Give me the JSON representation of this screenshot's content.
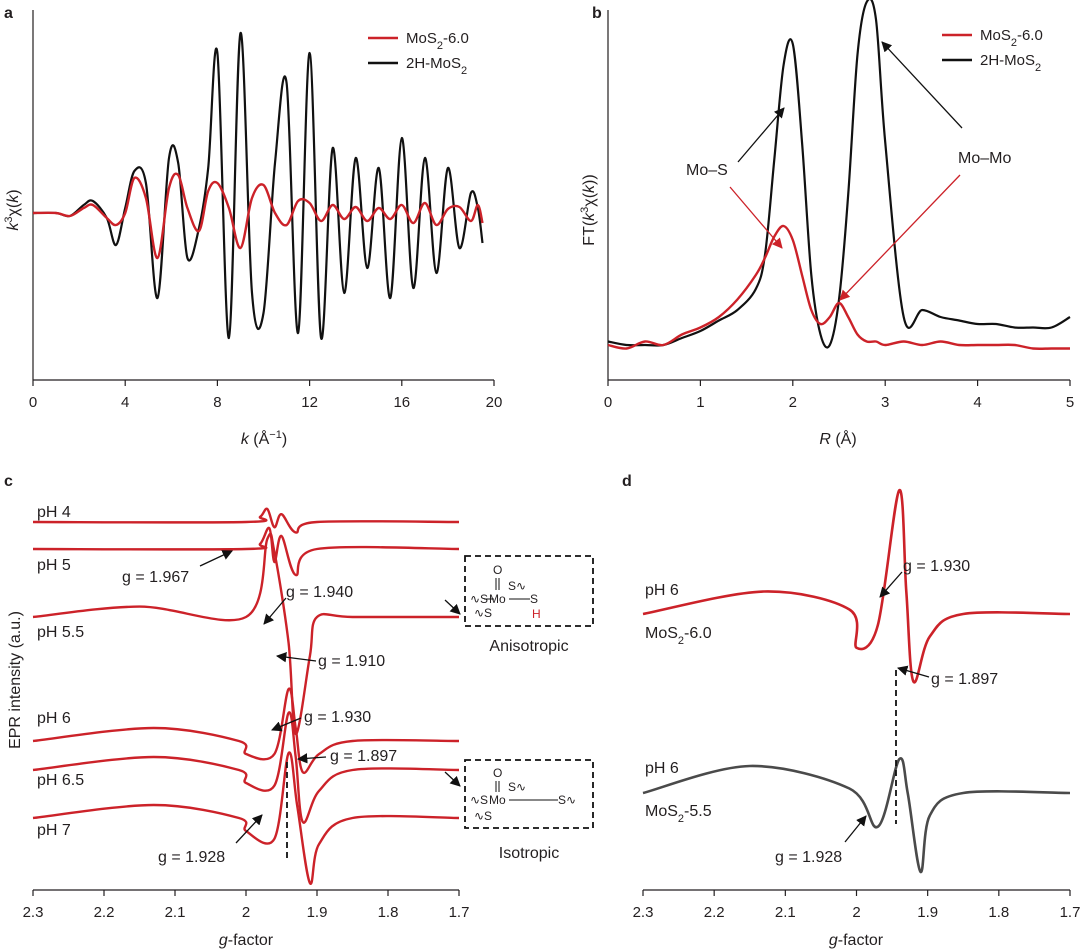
{
  "colors": {
    "red": "#cc2229",
    "black": "#111111",
    "gray": "#4a4a4a",
    "text": "#231f20"
  },
  "panels": {
    "a": {
      "letter": "a",
      "xlabel": "k (Å⁻¹)",
      "ylabel": "k³χ(k)",
      "legend": [
        "MoS2-6.0",
        "2H-MoS2"
      ],
      "xticks": [
        "0",
        "4",
        "8",
        "12",
        "16",
        "20"
      ]
    },
    "b": {
      "letter": "b",
      "xlabel": "R (Å)",
      "ylabel": "FT(k³χ(k))",
      "legend": [
        "MoS2-6.0",
        "2H-MoS2"
      ],
      "xticks": [
        "0",
        "1",
        "2",
        "3",
        "4",
        "5"
      ],
      "annotations": [
        "Mo–S",
        "Mo–Mo"
      ]
    },
    "c": {
      "letter": "c",
      "xlabel": "g-factor",
      "ylabel": "EPR intensity (a.u.)",
      "xticks": [
        "2.3",
        "2.2",
        "2.1",
        "2",
        "1.9",
        "1.8",
        "1.7"
      ],
      "traces": [
        "pH 4",
        "pH 5",
        "pH 5.5",
        "pH 6",
        "pH 6.5",
        "pH 7"
      ],
      "g_values": [
        "g = 1.967",
        "g = 1.940",
        "g = 1.910",
        "g = 1.930",
        "g = 1.897",
        "g = 1.928"
      ],
      "structures": [
        "Anisotropic",
        "Isotropic"
      ]
    },
    "d": {
      "letter": "d",
      "xlabel": "g-factor",
      "xticks": [
        "2.3",
        "2.2",
        "2.1",
        "2",
        "1.9",
        "1.8",
        "1.7"
      ],
      "traces": [
        "pH 6",
        "MoS2-6.0",
        "pH 6",
        "MoS2-5.5"
      ],
      "g_values": [
        "g = 1.930",
        "g = 1.897",
        "g = 1.928"
      ]
    }
  },
  "chart_data": [
    {
      "panel": "a",
      "type": "line",
      "title": "",
      "xlabel": "k (Å⁻¹)",
      "ylabel": "k³χ(k)",
      "xlim": [
        0,
        20
      ],
      "series": [
        {
          "name": "MoS2-6.0",
          "x": [
            0,
            1,
            1.6,
            2.2,
            2.6,
            3.2,
            3.6,
            4.0,
            4.4,
            4.9,
            5.4,
            5.9,
            6.3,
            6.7,
            7.2,
            7.6,
            8.0,
            8.5,
            9.0,
            9.5,
            10.0,
            10.5,
            11.0,
            11.5,
            12.0,
            12.5,
            13.0,
            13.5,
            14.0,
            14.5,
            15.0,
            15.5,
            16.0,
            16.5,
            17.0,
            17.5,
            18.0,
            18.5,
            19.0,
            19.3,
            19.5
          ],
          "y": [
            0.0,
            0.0,
            -0.03,
            0.05,
            0.08,
            -0.05,
            -0.12,
            0.0,
            0.35,
            0.15,
            -0.45,
            0.25,
            0.38,
            0.05,
            -0.18,
            0.22,
            0.3,
            0.05,
            -0.35,
            0.15,
            0.28,
            0.0,
            -0.12,
            0.12,
            0.1,
            -0.08,
            0.08,
            -0.06,
            0.06,
            -0.08,
            0.05,
            -0.06,
            0.08,
            -0.1,
            0.1,
            -0.12,
            0.04,
            0.06,
            -0.08,
            0.08,
            -0.1
          ]
        },
        {
          "name": "2H-MoS2",
          "x": [
            0,
            1,
            1.6,
            2.2,
            2.6,
            3.2,
            3.6,
            4.0,
            4.4,
            4.9,
            5.4,
            5.9,
            6.3,
            6.7,
            7.2,
            7.6,
            8.0,
            8.5,
            9.0,
            9.5,
            10.0,
            10.5,
            11.0,
            11.5,
            12.0,
            12.5,
            13.0,
            13.5,
            14.0,
            14.5,
            15.0,
            15.5,
            16.0,
            16.5,
            17.0,
            17.5,
            18.0,
            18.5,
            19.0,
            19.3,
            19.5
          ],
          "y": [
            0.0,
            0.0,
            -0.03,
            0.08,
            0.12,
            -0.05,
            -0.32,
            0.05,
            0.42,
            0.3,
            -0.85,
            0.55,
            0.5,
            -0.45,
            -0.15,
            0.45,
            1.6,
            -1.25,
            1.8,
            -0.8,
            -1.0,
            0.5,
            1.3,
            -1.2,
            1.6,
            -1.25,
            0.65,
            -0.8,
            0.55,
            -0.55,
            0.45,
            -0.85,
            0.75,
            -0.75,
            0.55,
            -0.6,
            0.45,
            -0.35,
            0.2,
            0.05,
            -0.3
          ]
        }
      ]
    },
    {
      "panel": "b",
      "type": "line",
      "title": "",
      "xlabel": "R (Å)",
      "ylabel": "FT(k³χ(k))",
      "xlim": [
        0,
        5
      ],
      "series": [
        {
          "name": "MoS2-6.0",
          "x": [
            0,
            0.2,
            0.4,
            0.6,
            0.8,
            1.0,
            1.2,
            1.4,
            1.6,
            1.7,
            1.8,
            1.9,
            2.0,
            2.1,
            2.2,
            2.3,
            2.4,
            2.5,
            2.6,
            2.7,
            2.8,
            2.9,
            3.0,
            3.2,
            3.4,
            3.6,
            3.8,
            4.0,
            4.2,
            4.4,
            4.6,
            4.8,
            5.0
          ],
          "y": [
            0.02,
            0.01,
            0.03,
            0.02,
            0.05,
            0.07,
            0.1,
            0.15,
            0.22,
            0.27,
            0.33,
            0.36,
            0.32,
            0.22,
            0.12,
            0.08,
            0.1,
            0.14,
            0.1,
            0.05,
            0.03,
            0.03,
            0.02,
            0.03,
            0.02,
            0.03,
            0.02,
            0.02,
            0.02,
            0.02,
            0.01,
            0.01,
            0.01
          ]
        },
        {
          "name": "2H-MoS2",
          "x": [
            0,
            0.2,
            0.4,
            0.6,
            0.8,
            1.0,
            1.2,
            1.4,
            1.6,
            1.7,
            1.8,
            1.9,
            2.0,
            2.1,
            2.2,
            2.3,
            2.4,
            2.5,
            2.6,
            2.7,
            2.8,
            2.9,
            3.0,
            3.2,
            3.4,
            3.6,
            3.8,
            4.0,
            4.2,
            4.4,
            4.6,
            4.8,
            5.0
          ],
          "y": [
            0.03,
            0.02,
            0.02,
            0.02,
            0.04,
            0.06,
            0.09,
            0.12,
            0.18,
            0.28,
            0.55,
            0.82,
            0.88,
            0.6,
            0.22,
            0.05,
            0.02,
            0.15,
            0.45,
            0.85,
            1.0,
            0.95,
            0.6,
            0.1,
            0.12,
            0.1,
            0.09,
            0.08,
            0.08,
            0.07,
            0.07,
            0.07,
            0.1
          ]
        }
      ]
    },
    {
      "panel": "c",
      "type": "line",
      "title": "",
      "xlabel": "g-factor",
      "ylabel": "EPR intensity (a.u.)",
      "xlim": [
        2.3,
        1.7
      ],
      "x_reversed": true,
      "series": [
        {
          "name": "pH 4",
          "x": [
            2.3,
            2.0,
            1.98,
            1.97,
            1.96,
            1.95,
            1.93,
            1.9,
            1.7
          ],
          "y": [
            0,
            0,
            0.02,
            0.05,
            -0.02,
            0.03,
            -0.04,
            0,
            0
          ]
        },
        {
          "name": "pH 5",
          "x": [
            2.3,
            2.0,
            1.98,
            1.967,
            1.96,
            1.95,
            1.93,
            1.9,
            1.7
          ],
          "y": [
            0,
            0,
            0.02,
            0.08,
            -0.05,
            0.05,
            -0.1,
            0,
            0
          ]
        },
        {
          "name": "pH 5.5",
          "x": [
            2.3,
            2.15,
            2.0,
            1.97,
            1.96,
            1.94,
            1.93,
            1.91,
            1.9,
            1.85,
            1.7
          ],
          "y": [
            0,
            0.04,
            0,
            0.3,
            0.25,
            -0.1,
            -0.45,
            -0.15,
            0,
            0,
            0
          ]
        },
        {
          "name": "pH 6",
          "x": [
            2.3,
            2.13,
            2.01,
            2.0,
            1.96,
            1.94,
            1.93,
            1.92,
            1.897,
            1.85,
            1.7
          ],
          "y": [
            0,
            0.05,
            0,
            -0.05,
            -0.05,
            0.2,
            0.05,
            -0.12,
            -0.05,
            0,
            0
          ]
        },
        {
          "name": "pH 6.5",
          "x": [
            2.3,
            2.13,
            2.01,
            2.0,
            1.96,
            1.94,
            1.93,
            1.92,
            1.897,
            1.85,
            1.7
          ],
          "y": [
            0,
            0.05,
            0,
            -0.05,
            -0.06,
            0.22,
            0.05,
            -0.2,
            -0.08,
            0,
            0
          ]
        },
        {
          "name": "pH 7",
          "x": [
            2.3,
            2.13,
            2.01,
            2.0,
            1.96,
            1.94,
            1.928,
            1.91,
            1.897,
            1.85,
            1.7
          ],
          "y": [
            0,
            0.05,
            0,
            -0.05,
            -0.08,
            0.25,
            0.05,
            -0.25,
            -0.1,
            0,
            0
          ]
        }
      ]
    },
    {
      "panel": "d",
      "type": "line",
      "title": "",
      "xlabel": "g-factor",
      "ylabel": "",
      "xlim": [
        2.3,
        1.7
      ],
      "x_reversed": true,
      "series": [
        {
          "name": "MoS2-6.0",
          "x": [
            2.3,
            2.13,
            2.01,
            2.0,
            1.97,
            1.94,
            1.93,
            1.92,
            1.897,
            1.85,
            1.7
          ],
          "y": [
            0,
            0.1,
            0.02,
            -0.15,
            -0.05,
            0.55,
            0.1,
            -0.3,
            -0.1,
            0,
            0
          ]
        },
        {
          "name": "MoS2-5.5",
          "x": [
            2.3,
            2.15,
            2.01,
            1.97,
            1.94,
            1.928,
            1.91,
            1.897,
            1.85,
            1.7
          ],
          "y": [
            0,
            0.12,
            0.02,
            -0.15,
            0.15,
            0.0,
            -0.35,
            -0.1,
            0,
            0
          ]
        }
      ]
    }
  ]
}
